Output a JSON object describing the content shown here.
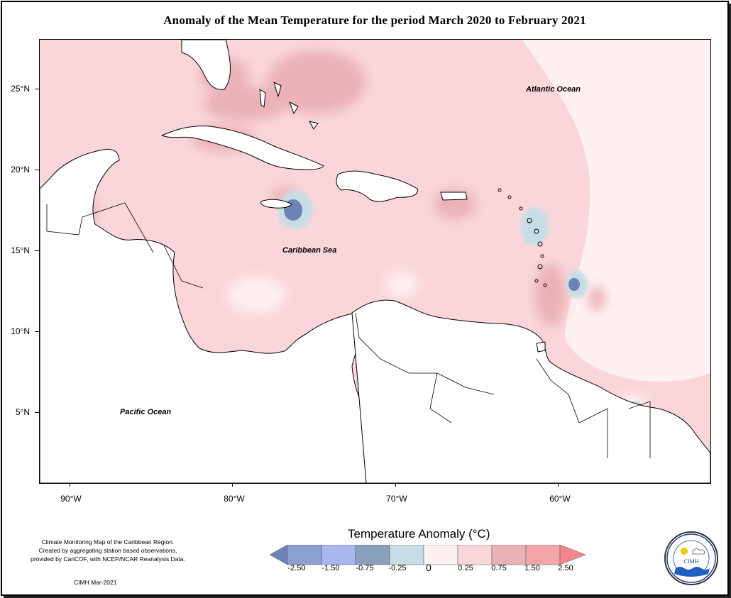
{
  "title": "Anomaly of the Mean Temperature for the period March 2020 to February 2021",
  "map": {
    "latitude_labels": [
      "25°N",
      "20°N",
      "15°N",
      "10°N",
      "5°N"
    ],
    "longitude_labels": [
      "90°W",
      "80°W",
      "70°W",
      "60°W"
    ],
    "region_labels": {
      "atlantic": "Atlantic Ocean",
      "caribbean": "Caribbean Sea",
      "pacific": "Pacific Ocean"
    }
  },
  "legend": {
    "title": "Temperature Anomaly (°C)",
    "tick_labels": [
      "-2.50",
      "-1.50",
      "-0.75",
      "-0.25",
      "0",
      "0.25",
      "0.75",
      "1.50",
      "2.50"
    ],
    "colors": [
      "#6d83b6",
      "#9aa8dc",
      "#a7b8ef",
      "#8aa1bd",
      "#c7dde6",
      "#fff1f1",
      "#fad6da",
      "#eab2b7",
      "#f4868b"
    ]
  },
  "footnote": {
    "lines": [
      "Climate Monitoring Map of the Caribbean Region.",
      "Created by aggregating station based observations,",
      "provided by CariCOF, with NCEP/NCAR Reanalysis Data."
    ],
    "credit": "CIMH Mar-2021"
  },
  "logo": {
    "text": "CIMH",
    "ring_text": "Caribbean Institute for Meteorology and Hydrology"
  }
}
